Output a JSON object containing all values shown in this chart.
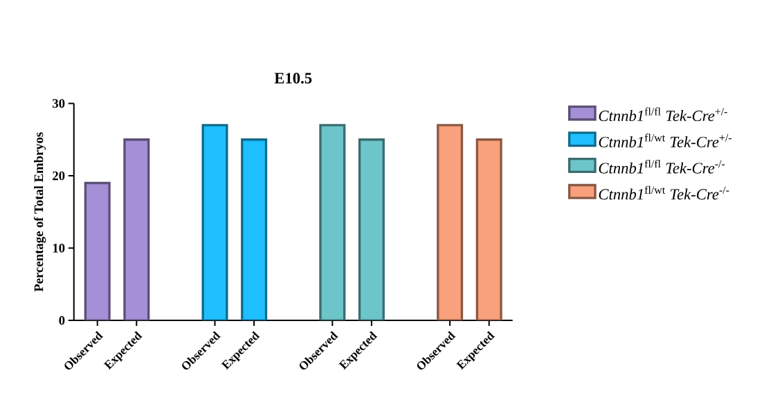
{
  "chart_data": {
    "type": "bar",
    "title": "E10.5",
    "ylabel": "Percentage of Total Embryos",
    "categories": [
      "Observed",
      "Expected",
      null,
      "Observed",
      "Expected",
      null,
      "Observed",
      "Expected",
      null,
      "Observed",
      "Expected"
    ],
    "series": [
      {
        "name": "*Ctnnb1*$^{fl/fl}$ *Tek-Cre*$^{+/-}$",
        "color": "#a58fd6",
        "values": [
          19,
          25,
          null,
          null,
          null,
          null,
          null,
          null,
          null,
          null,
          null
        ]
      },
      {
        "name": "*Ctnnb1*$^{fl/wt}$ *Tek-Cre*$^{+/-}$",
        "color": "#1ec0ff",
        "values": [
          null,
          null,
          null,
          27,
          25,
          null,
          null,
          null,
          null,
          null,
          null
        ]
      },
      {
        "name": "*Ctnnb1*$^{fl/fl}$ *Tek-Cre*$^{-/-}$",
        "color": "#6cc5c9",
        "values": [
          null,
          null,
          null,
          null,
          null,
          null,
          27,
          25,
          null,
          null,
          null
        ]
      },
      {
        "name": "*Ctnnb1*$^{fl/wt}$ *Tek-Cre*$^{-/-}$",
        "color": "#f9a07c",
        "values": [
          null,
          null,
          null,
          null,
          null,
          null,
          null,
          null,
          null,
          27,
          25
        ]
      }
    ],
    "ylim": [
      0,
      30
    ],
    "yticks": [
      0,
      10,
      20,
      30
    ],
    "grid": false,
    "legend": "right"
  }
}
